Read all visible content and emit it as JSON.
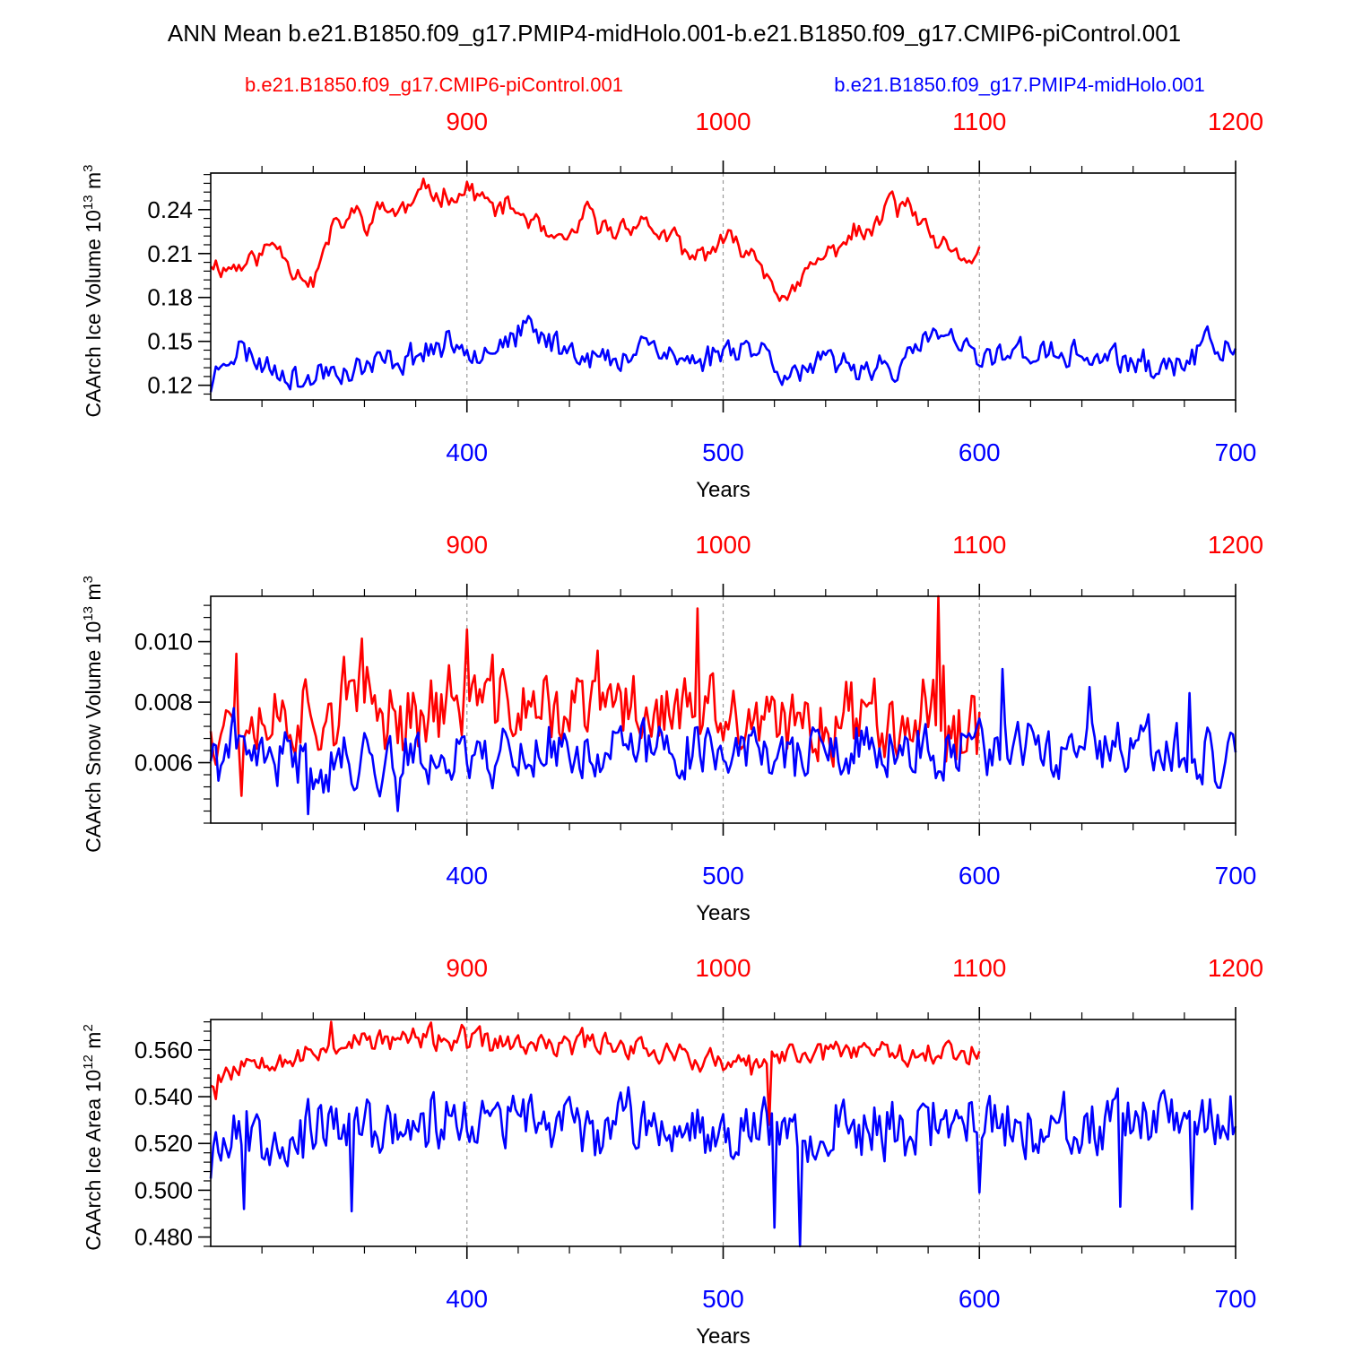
{
  "title": "ANN Mean b.e21.B1850.f09_g17.PMIP4-midHolo.001-b.e21.B1850.f09_g17.CMIP6-piControl.001",
  "legend": {
    "red_label": "b.e21.B1850.f09_g17.CMIP6-piControl.001",
    "blue_label": "b.e21.B1850.f09_g17.PMIP4-midHolo.001"
  },
  "colors": {
    "red": "#ff0000",
    "blue": "#0000ff",
    "axis": "#000000",
    "grid": "#999999"
  },
  "chart_data": [
    {
      "type": "line",
      "ylabel_text": "CAArch Ice Volume 10",
      "ylabel_exp": "13",
      "ylabel_unit": " m",
      "ylabel_unit_exp": "3",
      "xlabel": "Years",
      "xlim": [
        300,
        700
      ],
      "top_xlim": [
        800,
        1200
      ],
      "ylim": [
        0.11,
        0.265
      ],
      "yticks": [
        0.12,
        0.15,
        0.18,
        0.21,
        0.24
      ],
      "ytick_labels": [
        "0.12",
        "0.15",
        "0.18",
        "0.21",
        "0.24"
      ],
      "yminor": 0.006,
      "xticks": [
        400,
        500,
        600,
        700
      ],
      "xtick_labels": [
        "400",
        "500",
        "600",
        "700"
      ],
      "top_xticks": [
        900,
        1000,
        1100,
        1200
      ],
      "top_xtick_labels": [
        "900",
        "1000",
        "1100",
        "1200"
      ],
      "grid_x": [
        400,
        500,
        600
      ],
      "series": [
        {
          "name": "b.e21.B1850.f09_g17.CMIP6-piControl.001",
          "color": "red",
          "x_start": 300,
          "x_end": 600,
          "keys": [
            [
              300,
              0.205
            ],
            [
              305,
              0.2
            ],
            [
              312,
              0.202
            ],
            [
              320,
              0.21
            ],
            [
              325,
              0.218
            ],
            [
              328,
              0.212
            ],
            [
              332,
              0.2
            ],
            [
              337,
              0.195
            ],
            [
              340,
              0.19
            ],
            [
              343,
              0.205
            ],
            [
              347,
              0.225
            ],
            [
              352,
              0.232
            ],
            [
              357,
              0.238
            ],
            [
              362,
              0.23
            ],
            [
              367,
              0.243
            ],
            [
              372,
              0.238
            ],
            [
              378,
              0.242
            ],
            [
              382,
              0.25
            ],
            [
              385,
              0.258
            ],
            [
              388,
              0.248
            ],
            [
              392,
              0.252
            ],
            [
              397,
              0.25
            ],
            [
              402,
              0.255
            ],
            [
              407,
              0.245
            ],
            [
              412,
              0.24
            ],
            [
              417,
              0.242
            ],
            [
              422,
              0.235
            ],
            [
              427,
              0.23
            ],
            [
              432,
              0.22
            ],
            [
              437,
              0.215
            ],
            [
              442,
              0.225
            ],
            [
              447,
              0.238
            ],
            [
              452,
              0.228
            ],
            [
              457,
              0.225
            ],
            [
              462,
              0.23
            ],
            [
              467,
              0.232
            ],
            [
              472,
              0.228
            ],
            [
              477,
              0.222
            ],
            [
              482,
              0.218
            ],
            [
              487,
              0.205
            ],
            [
              492,
              0.21
            ],
            [
              497,
              0.215
            ],
            [
              502,
              0.218
            ],
            [
              507,
              0.215
            ],
            [
              512,
              0.21
            ],
            [
              517,
              0.198
            ],
            [
              522,
              0.185
            ],
            [
              525,
              0.175
            ],
            [
              528,
              0.183
            ],
            [
              532,
              0.196
            ],
            [
              537,
              0.205
            ],
            [
              542,
              0.21
            ],
            [
              547,
              0.22
            ],
            [
              552,
              0.225
            ],
            [
              557,
              0.222
            ],
            [
              562,
              0.235
            ],
            [
              565,
              0.25
            ],
            [
              568,
              0.24
            ],
            [
              572,
              0.245
            ],
            [
              576,
              0.232
            ],
            [
              580,
              0.222
            ],
            [
              585,
              0.215
            ],
            [
              590,
              0.208
            ],
            [
              595,
              0.205
            ],
            [
              600,
              0.212
            ]
          ],
          "noise": 0.006,
          "seed": 11
        },
        {
          "name": "b.e21.B1850.f09_g17.PMIP4-midHolo.001",
          "color": "blue",
          "x_start": 300,
          "x_end": 700,
          "keys": [
            [
              300,
              0.12
            ],
            [
              305,
              0.14
            ],
            [
              312,
              0.145
            ],
            [
              320,
              0.135
            ],
            [
              330,
              0.13
            ],
            [
              337,
              0.12
            ],
            [
              345,
              0.132
            ],
            [
              355,
              0.13
            ],
            [
              365,
              0.135
            ],
            [
              375,
              0.138
            ],
            [
              385,
              0.145
            ],
            [
              395,
              0.148
            ],
            [
              405,
              0.145
            ],
            [
              415,
              0.15
            ],
            [
              425,
              0.158
            ],
            [
              430,
              0.152
            ],
            [
              440,
              0.145
            ],
            [
              450,
              0.14
            ],
            [
              460,
              0.132
            ],
            [
              468,
              0.155
            ],
            [
              475,
              0.145
            ],
            [
              485,
              0.135
            ],
            [
              495,
              0.14
            ],
            [
              505,
              0.148
            ],
            [
              515,
              0.145
            ],
            [
              522,
              0.132
            ],
            [
              530,
              0.128
            ],
            [
              540,
              0.135
            ],
            [
              550,
              0.132
            ],
            [
              560,
              0.135
            ],
            [
              570,
              0.13
            ],
            [
              580,
              0.155
            ],
            [
              590,
              0.15
            ],
            [
              600,
              0.135
            ],
            [
              610,
              0.145
            ],
            [
              620,
              0.142
            ],
            [
              630,
              0.14
            ],
            [
              640,
              0.14
            ],
            [
              650,
              0.138
            ],
            [
              660,
              0.135
            ],
            [
              670,
              0.132
            ],
            [
              680,
              0.135
            ],
            [
              690,
              0.15
            ],
            [
              700,
              0.14
            ]
          ],
          "noise": 0.008,
          "seed": 23
        }
      ]
    },
    {
      "type": "line",
      "ylabel_text": "CAArch Snow Volume 10",
      "ylabel_exp": "13",
      "ylabel_unit": " m",
      "ylabel_unit_exp": "3",
      "xlabel": "Years",
      "xlim": [
        300,
        700
      ],
      "top_xlim": [
        800,
        1200
      ],
      "ylim": [
        0.004,
        0.0115
      ],
      "yticks": [
        0.006,
        0.008,
        0.01
      ],
      "ytick_labels": [
        "0.006",
        "0.008",
        "0.010"
      ],
      "yminor": 0.0004,
      "xticks": [
        400,
        500,
        600,
        700
      ],
      "xtick_labels": [
        "400",
        "500",
        "600",
        "700"
      ],
      "top_xticks": [
        900,
        1000,
        1100,
        1200
      ],
      "top_xtick_labels": [
        "900",
        "1000",
        "1100",
        "1200"
      ],
      "grid_x": [
        400,
        500,
        600
      ],
      "series": [
        {
          "name": "b.e21.B1850.f09_g17.CMIP6-piControl.001",
          "color": "red",
          "x_start": 300,
          "x_end": 600,
          "keys": [
            [
              300,
              0.0075
            ],
            [
              320,
              0.0076
            ],
            [
              340,
              0.0077
            ],
            [
              360,
              0.0078
            ],
            [
              380,
              0.0076
            ],
            [
              400,
              0.0082
            ],
            [
              420,
              0.0078
            ],
            [
              440,
              0.0077
            ],
            [
              460,
              0.0079
            ],
            [
              480,
              0.0077
            ],
            [
              500,
              0.0074
            ],
            [
              520,
              0.007
            ],
            [
              540,
              0.0074
            ],
            [
              560,
              0.0078
            ],
            [
              580,
              0.0075
            ],
            [
              600,
              0.0072
            ]
          ],
          "noise": 0.0011,
          "seed": 37,
          "spikes": [
            [
              310,
              0.0096
            ],
            [
              312,
              0.0049
            ],
            [
              352,
              0.0095
            ],
            [
              359,
              0.0101
            ],
            [
              400,
              0.0104
            ],
            [
              451,
              0.0097
            ],
            [
              490,
              0.0111
            ],
            [
              584,
              0.0115
            ],
            [
              586,
              0.0092
            ]
          ]
        },
        {
          "name": "b.e21.B1850.f09_g17.PMIP4-midHolo.001",
          "color": "blue",
          "x_start": 300,
          "x_end": 700,
          "keys": [
            [
              300,
              0.0062
            ],
            [
              350,
              0.006
            ],
            [
              400,
              0.0063
            ],
            [
              450,
              0.0064
            ],
            [
              500,
              0.0065
            ],
            [
              550,
              0.0062
            ],
            [
              600,
              0.0064
            ],
            [
              650,
              0.0063
            ],
            [
              700,
              0.0062
            ]
          ],
          "noise": 0.0008,
          "seed": 41,
          "spikes": [
            [
              309,
              0.0078
            ],
            [
              338,
              0.0043
            ],
            [
              373,
              0.0044
            ],
            [
              609,
              0.0091
            ],
            [
              643,
              0.0085
            ],
            [
              682,
              0.0083
            ]
          ]
        }
      ]
    },
    {
      "type": "line",
      "ylabel_text": "CAArch Ice Area 10",
      "ylabel_exp": "12",
      "ylabel_unit": " m",
      "ylabel_unit_exp": "2",
      "xlabel": "Years",
      "xlim": [
        300,
        700
      ],
      "top_xlim": [
        800,
        1200
      ],
      "ylim": [
        0.476,
        0.573
      ],
      "yticks": [
        0.48,
        0.5,
        0.52,
        0.54,
        0.56
      ],
      "ytick_labels": [
        "0.480",
        "0.500",
        "0.520",
        "0.540",
        "0.560"
      ],
      "yminor": 0.004,
      "xticks": [
        400,
        500,
        600,
        700
      ],
      "xtick_labels": [
        "400",
        "500",
        "600",
        "700"
      ],
      "top_xticks": [
        900,
        1000,
        1100,
        1200
      ],
      "top_xtick_labels": [
        "900",
        "1000",
        "1100",
        "1200"
      ],
      "grid_x": [
        400,
        500,
        600
      ],
      "series": [
        {
          "name": "b.e21.B1850.f09_g17.CMIP6-piControl.001",
          "color": "red",
          "x_start": 300,
          "x_end": 600,
          "keys": [
            [
              300,
              0.548
            ],
            [
              310,
              0.553
            ],
            [
              320,
              0.558
            ],
            [
              335,
              0.556
            ],
            [
              350,
              0.563
            ],
            [
              370,
              0.564
            ],
            [
              390,
              0.565
            ],
            [
              410,
              0.563
            ],
            [
              430,
              0.561
            ],
            [
              450,
              0.564
            ],
            [
              470,
              0.561
            ],
            [
              490,
              0.556
            ],
            [
              510,
              0.552
            ],
            [
              530,
              0.559
            ],
            [
              550,
              0.561
            ],
            [
              570,
              0.56
            ],
            [
              590,
              0.558
            ],
            [
              600,
              0.56
            ]
          ],
          "noise": 0.0045,
          "seed": 53,
          "spikes": [
            [
              302,
              0.539
            ],
            [
              347,
              0.572
            ],
            [
              518,
              0.528
            ]
          ]
        },
        {
          "name": "b.e21.B1850.f09_g17.PMIP4-midHolo.001",
          "color": "blue",
          "x_start": 300,
          "x_end": 700,
          "keys": [
            [
              300,
              0.525
            ],
            [
              350,
              0.525
            ],
            [
              400,
              0.53
            ],
            [
              450,
              0.528
            ],
            [
              500,
              0.528
            ],
            [
              550,
              0.525
            ],
            [
              600,
              0.53
            ],
            [
              650,
              0.525
            ],
            [
              700,
              0.53
            ]
          ],
          "noise": 0.011,
          "seed": 67,
          "spikes": [
            [
              300,
              0.505
            ],
            [
              313,
              0.492
            ],
            [
              355,
              0.491
            ],
            [
              520,
              0.484
            ],
            [
              530,
              0.476
            ],
            [
              600,
              0.499
            ],
            [
              655,
              0.493
            ],
            [
              683,
              0.492
            ]
          ]
        }
      ]
    }
  ]
}
